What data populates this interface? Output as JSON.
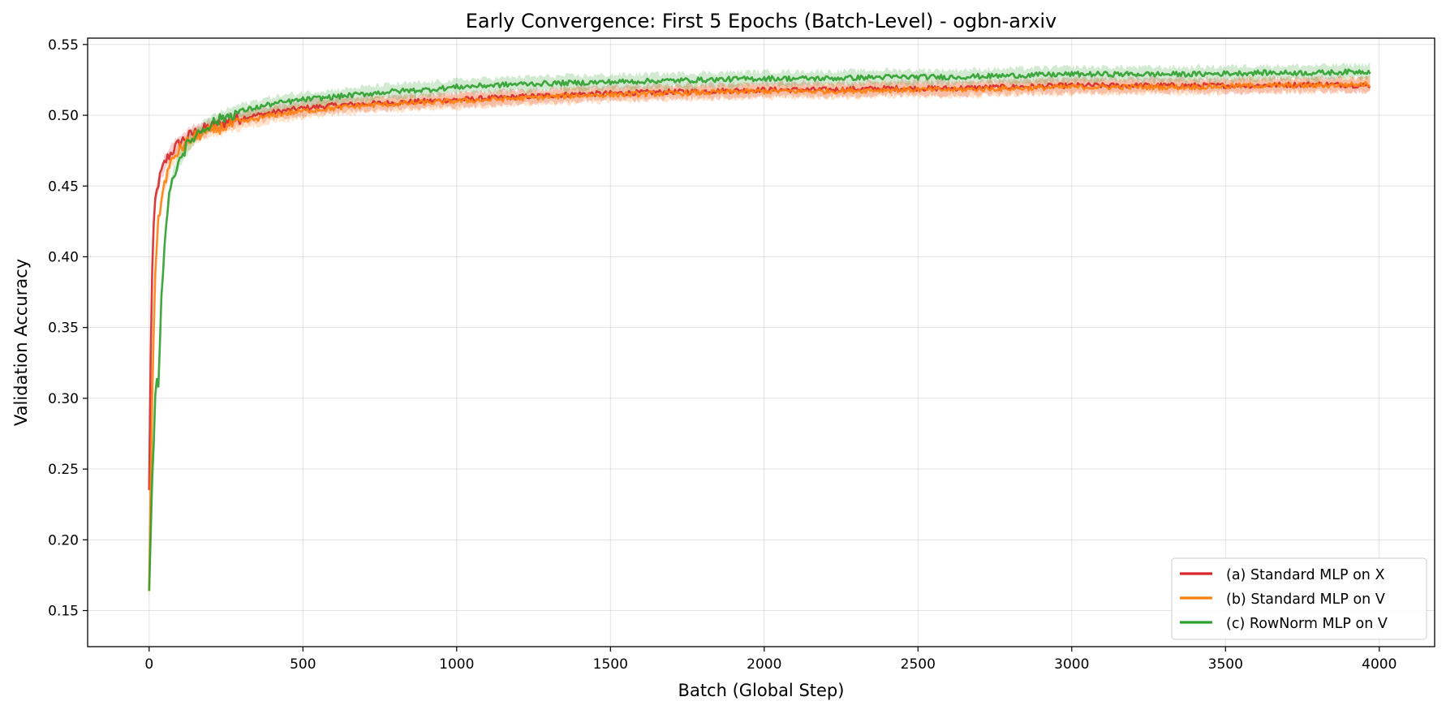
{
  "chart_data": {
    "type": "line",
    "title": "Early Convergence: First 5 Epochs (Batch-Level) - ogbn-arxiv",
    "xlabel": "Batch (Global Step)",
    "ylabel": "Validation Accuracy",
    "xlim": [
      -200,
      4180
    ],
    "ylim": [
      0.1245,
      0.5545
    ],
    "xticks": [
      0,
      500,
      1000,
      1500,
      2000,
      2500,
      3000,
      3500,
      4000
    ],
    "yticks": [
      0.15,
      0.2,
      0.25,
      0.3,
      0.35,
      0.4,
      0.45,
      0.5,
      0.55
    ],
    "xtick_labels": [
      "0",
      "500",
      "1000",
      "1500",
      "2000",
      "2500",
      "3000",
      "3500",
      "4000"
    ],
    "ytick_labels": [
      "0.15",
      "0.20",
      "0.25",
      "0.30",
      "0.35",
      "0.40",
      "0.45",
      "0.50",
      "0.55"
    ],
    "grid": true,
    "legend_position": "lower-right",
    "series": [
      {
        "name": "(a) Standard MLP on X",
        "color": "#d62728",
        "x": [
          0,
          5,
          10,
          15,
          20,
          30,
          40,
          50,
          60,
          80,
          100,
          125,
          150,
          200,
          250,
          300,
          400,
          500,
          600,
          700,
          800,
          900,
          1000,
          1200,
          1400,
          1600,
          1800,
          2000,
          2200,
          2400,
          2600,
          2800,
          3000,
          3200,
          3400,
          3600,
          3800,
          3970
        ],
        "y": [
          0.234,
          0.33,
          0.39,
          0.42,
          0.44,
          0.452,
          0.46,
          0.466,
          0.47,
          0.476,
          0.481,
          0.485,
          0.488,
          0.492,
          0.495,
          0.498,
          0.502,
          0.505,
          0.507,
          0.508,
          0.509,
          0.51,
          0.511,
          0.513,
          0.515,
          0.516,
          0.517,
          0.518,
          0.518,
          0.519,
          0.519,
          0.52,
          0.521,
          0.521,
          0.521,
          0.521,
          0.522,
          0.521
        ]
      },
      {
        "name": "(b) Standard MLP on V",
        "color": "#ff7f0e",
        "x": [
          0,
          5,
          10,
          15,
          20,
          30,
          40,
          50,
          60,
          80,
          100,
          125,
          150,
          200,
          250,
          300,
          400,
          500,
          600,
          700,
          800,
          900,
          1000,
          1200,
          1400,
          1600,
          1800,
          2000,
          2200,
          2400,
          2600,
          2800,
          3000,
          3200,
          3400,
          3600,
          3800,
          3970
        ],
        "y": [
          0.16,
          0.24,
          0.3,
          0.35,
          0.39,
          0.425,
          0.44,
          0.452,
          0.46,
          0.47,
          0.476,
          0.481,
          0.485,
          0.489,
          0.492,
          0.495,
          0.5,
          0.503,
          0.505,
          0.507,
          0.508,
          0.509,
          0.51,
          0.512,
          0.514,
          0.515,
          0.516,
          0.517,
          0.517,
          0.518,
          0.518,
          0.519,
          0.52,
          0.52,
          0.52,
          0.521,
          0.521,
          0.522
        ]
      },
      {
        "name": "(c) RowNorm MLP on V",
        "color": "#2ca02c",
        "x": [
          0,
          5,
          10,
          15,
          20,
          25,
          30,
          35,
          40,
          50,
          60,
          70,
          80,
          100,
          125,
          150,
          200,
          250,
          300,
          400,
          500,
          600,
          700,
          800,
          900,
          1000,
          1200,
          1400,
          1600,
          1800,
          2000,
          2200,
          2400,
          2600,
          2800,
          3000,
          3200,
          3400,
          3600,
          3800,
          3970
        ],
        "y": [
          0.16,
          0.2,
          0.24,
          0.27,
          0.3,
          0.31,
          0.312,
          0.34,
          0.37,
          0.41,
          0.435,
          0.448,
          0.458,
          0.47,
          0.479,
          0.486,
          0.494,
          0.499,
          0.503,
          0.508,
          0.511,
          0.513,
          0.515,
          0.517,
          0.518,
          0.52,
          0.522,
          0.523,
          0.524,
          0.525,
          0.526,
          0.526,
          0.527,
          0.527,
          0.528,
          0.529,
          0.529,
          0.529,
          0.53,
          0.53,
          0.531
        ]
      }
    ]
  }
}
